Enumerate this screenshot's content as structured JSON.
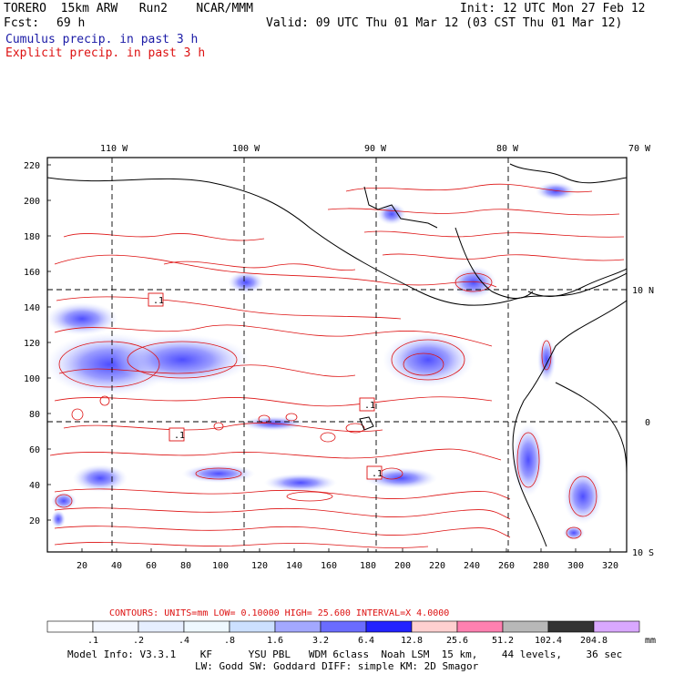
{
  "header": {
    "model": "TORERO  15km ARW   Run2    NCAR/MMM",
    "init": "Init: 12 UTC Mon 27 Feb 12",
    "fcst_label": "Fcst:",
    "fcst_value": "69 h",
    "valid": "Valid: 09 UTC Thu 01 Mar 12 (03 CST Thu 01 Mar 12)",
    "legend_cumulus": "Cumulus precip. in past 3 h",
    "legend_explicit": "Explicit precip. in past 3 h"
  },
  "map": {
    "lon_labels": [
      "110 W",
      "100 W",
      "90 W",
      "80 W",
      "70 W"
    ],
    "lat_labels_right": [
      "10 N",
      "0",
      "10 S"
    ],
    "y_ticks": [
      "220",
      "200",
      "180",
      "160",
      "140",
      "120",
      "100",
      "80",
      "60",
      "40",
      "20"
    ],
    "x_ticks": [
      "20",
      "40",
      "60",
      "80",
      "100",
      "120",
      "140",
      "160",
      "180",
      "200",
      "220",
      "240",
      "260",
      "280",
      "300",
      "320"
    ],
    "box_labels": [
      ".1",
      ".1",
      ".1",
      ".1"
    ],
    "colors": {
      "contour": "#dd1111",
      "coast": "#000000",
      "grid": "#000000"
    }
  },
  "contours_info": "CONTOURS:  UNITS=mm  LOW= 0.10000     HIGH=  25.600     INTERVAL=X  4.0000",
  "colorbar": {
    "labels": [
      ".1",
      ".2",
      ".4",
      ".8",
      "1.6",
      "3.2",
      "6.4",
      "12.8",
      "25.6",
      "51.2",
      "102.4",
      "204.8"
    ],
    "unit": "mm",
    "colors": [
      "#ffffff",
      "#f2f6ff",
      "#e6eeff",
      "#eef8ff",
      "#cce0ff",
      "#a3a8ff",
      "#6a6cff",
      "#2222ff",
      "#ffd0d0",
      "#ff80b0",
      "#b8b8b8",
      "#333333",
      "#d9a8ff"
    ]
  },
  "footer": {
    "line1": "Model Info: V3.3.1    KF      YSU PBL   WDM 6class  Noah LSM  15 km,    44 levels,    36 sec",
    "line2": "LW: Godd SW: Goddard DIFF: simple KM: 2D Smagor"
  }
}
